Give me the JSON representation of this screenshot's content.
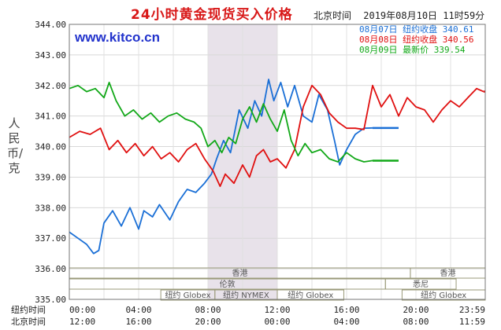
{
  "header": {
    "title": "24小时黄金现货买入价格",
    "location": "北京时间",
    "datetime": "2019年08月10日 11时59分",
    "url": "www.kitco.cn",
    "ylabel": "人民币/克"
  },
  "legend": [
    {
      "date": "08月07日",
      "label": "纽约收盘",
      "value": "340.61",
      "color": "#1a6fd6"
    },
    {
      "date": "08月08日",
      "label": "纽约收盘",
      "value": "340.56",
      "color": "#e01010"
    },
    {
      "date": "08月09日",
      "label": "最新价",
      "value": "339.54",
      "color": "#12a818"
    }
  ],
  "sessions": [
    {
      "name": "香港",
      "level": 0,
      "start": 0.0,
      "end": 0.82
    },
    {
      "name": "伦敦",
      "level": 1,
      "start": 0.0,
      "end": 0.76
    },
    {
      "name": "纽约 Globex",
      "level": 2,
      "start": 0.22,
      "end": 0.35
    },
    {
      "name": "纽约 NYMEX",
      "level": 2,
      "start": 0.35,
      "end": 0.5
    },
    {
      "name": "纽约 Globex",
      "level": 2,
      "start": 0.5,
      "end": 0.66
    },
    {
      "name": "香港",
      "level": 0,
      "start": 0.82,
      "end": 1.0
    },
    {
      "name": "悉尼",
      "level": 1,
      "start": 0.76,
      "end": 0.93
    },
    {
      "name": "纽约 Globex",
      "level": 2,
      "start": 0.8,
      "end": 1.0
    }
  ],
  "xaxis": {
    "ny_label": "纽约时间",
    "bj_label": "北京时间",
    "ny_ticks": [
      "00:00",
      "04:00",
      "08:00",
      "12:00",
      "16:00",
      "20:00",
      "23:59"
    ],
    "bj_ticks": [
      "12:00",
      "16:00",
      "20:00",
      "00:00",
      "04:00",
      "08:00",
      "11:59"
    ]
  },
  "chart_data": {
    "type": "line",
    "title": "24小时黄金现货买入价格",
    "ylabel": "人民币/克",
    "ylim": [
      335.0,
      344.0
    ],
    "yticks": [
      "344.00",
      "343.00",
      "342.00",
      "341.00",
      "340.00",
      "339.00",
      "338.00",
      "337.00",
      "336.00",
      "335.00"
    ],
    "x_unit": "hours (New York time)",
    "shaded_range": [
      8.0,
      12.0
    ],
    "series": [
      {
        "name": "08月07日",
        "color": "#1a6fd6",
        "x": [
          0.0,
          0.5,
          1.0,
          1.4,
          1.7,
          2.0,
          2.5,
          3.0,
          3.5,
          4.0,
          4.3,
          4.8,
          5.2,
          5.8,
          6.3,
          6.8,
          7.3,
          7.8,
          8.2,
          8.5,
          8.9,
          9.3,
          9.8,
          10.3,
          10.7,
          11.1,
          11.5,
          11.8,
          12.2,
          12.6,
          13.0,
          13.5,
          14.0,
          14.4,
          14.9,
          15.3,
          15.6,
          16.0,
          16.5,
          17.0,
          17.5
        ],
        "y": [
          337.2,
          337.0,
          336.8,
          336.5,
          336.6,
          337.5,
          337.9,
          337.4,
          338.0,
          337.3,
          337.9,
          337.7,
          338.1,
          337.6,
          338.2,
          338.6,
          338.5,
          338.8,
          339.1,
          339.6,
          340.2,
          339.8,
          341.2,
          340.6,
          341.5,
          341.0,
          342.2,
          341.5,
          342.1,
          341.3,
          342.0,
          341.0,
          340.8,
          341.7,
          341.2,
          340.2,
          339.4,
          339.9,
          340.4,
          340.6,
          340.61
        ]
      },
      {
        "name": "08月08日",
        "color": "#e01010",
        "x": [
          0.0,
          0.6,
          1.2,
          1.8,
          2.3,
          2.8,
          3.3,
          3.8,
          4.3,
          4.8,
          5.3,
          5.8,
          6.3,
          6.8,
          7.3,
          7.8,
          8.3,
          8.7,
          9.0,
          9.5,
          10.0,
          10.4,
          10.8,
          11.2,
          11.6,
          12.0,
          12.5,
          13.0,
          13.5,
          14.0,
          14.5,
          15.0,
          15.5,
          16.0,
          16.5,
          17.0,
          17.5,
          18.0,
          18.5,
          19.0,
          19.5,
          20.0,
          20.5,
          21.0,
          21.5,
          22.0,
          22.5,
          23.0,
          23.5,
          23.9
        ],
        "y": [
          340.3,
          340.5,
          340.4,
          340.6,
          339.9,
          340.2,
          339.8,
          340.1,
          339.7,
          340.0,
          339.6,
          339.8,
          339.5,
          339.9,
          340.1,
          339.6,
          339.2,
          338.7,
          339.1,
          338.8,
          339.4,
          339.0,
          339.7,
          339.9,
          339.5,
          339.6,
          339.3,
          339.9,
          341.3,
          342.0,
          341.7,
          341.1,
          340.8,
          340.6,
          340.6,
          340.56,
          342.0,
          341.3,
          341.7,
          341.0,
          341.6,
          341.3,
          341.2,
          340.8,
          341.2,
          341.5,
          341.3,
          341.6,
          341.9,
          341.8
        ]
      },
      {
        "name": "08月09日",
        "color": "#12a818",
        "x": [
          0.0,
          0.5,
          1.0,
          1.5,
          2.0,
          2.3,
          2.7,
          3.2,
          3.7,
          4.2,
          4.7,
          5.2,
          5.7,
          6.2,
          6.7,
          7.2,
          7.6,
          8.0,
          8.4,
          8.8,
          9.2,
          9.6,
          10.0,
          10.4,
          10.8,
          11.2,
          11.6,
          12.0,
          12.4,
          12.8,
          13.2,
          13.6,
          14.0,
          14.5,
          15.0,
          15.5,
          16.0,
          16.5,
          17.0,
          17.5
        ],
        "y": [
          341.9,
          342.0,
          341.8,
          341.9,
          341.6,
          342.1,
          341.5,
          341.0,
          341.2,
          340.9,
          341.1,
          340.8,
          341.0,
          341.1,
          340.9,
          340.8,
          340.6,
          340.0,
          340.2,
          339.8,
          340.3,
          340.1,
          340.9,
          341.3,
          340.8,
          341.4,
          340.9,
          340.5,
          341.2,
          340.2,
          339.7,
          340.1,
          339.8,
          339.9,
          339.6,
          339.5,
          339.8,
          339.6,
          339.5,
          339.54
        ]
      }
    ]
  }
}
